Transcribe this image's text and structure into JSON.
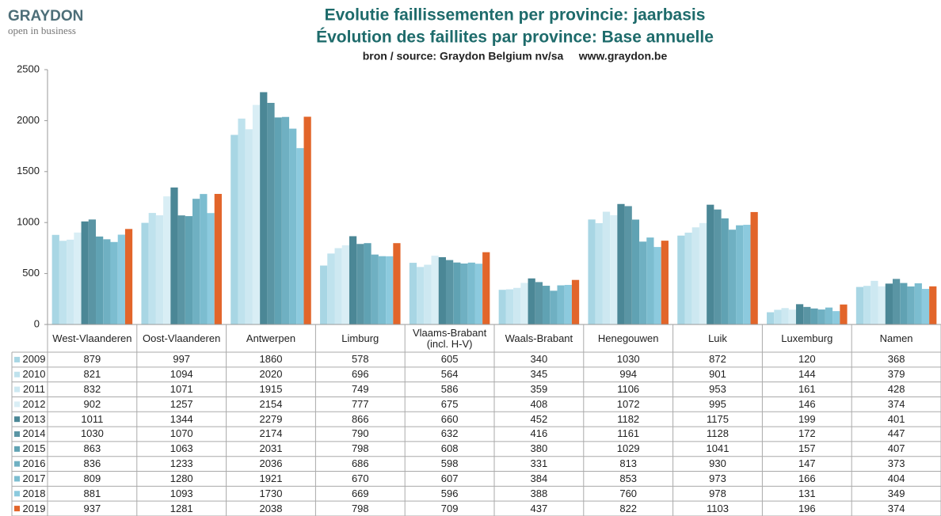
{
  "logo": {
    "name": "GRAYDON",
    "tagline": "open in business"
  },
  "chart_data": {
    "type": "bar",
    "title": "Evolutie faillissementen per provincie: jaarbasis",
    "title2": "Évolution des faillites par province: Base annuelle",
    "subtitle": "bron / source: Graydon Belgium nv/sa     www.graydon.be",
    "categories": [
      "West-Vlaanderen",
      "Oost-Vlaanderen",
      "Antwerpen",
      "Limburg",
      "Vlaams-Brabant (incl. H-V)",
      "Waals-Brabant",
      "Henegouwen",
      "Luik",
      "Luxemburg",
      "Namen"
    ],
    "series": [
      {
        "name": "2009",
        "color": "#a8d6e4",
        "values": [
          879,
          997,
          1860,
          578,
          605,
          340,
          1030,
          872,
          120,
          368
        ]
      },
      {
        "name": "2010",
        "color": "#bfe2ed",
        "values": [
          821,
          1094,
          2020,
          696,
          564,
          345,
          994,
          901,
          144,
          379
        ]
      },
      {
        "name": "2011",
        "color": "#cde8f1",
        "values": [
          832,
          1071,
          1915,
          749,
          586,
          359,
          1106,
          953,
          161,
          428
        ]
      },
      {
        "name": "2012",
        "color": "#d9eef5",
        "values": [
          902,
          1257,
          2154,
          777,
          675,
          408,
          1072,
          995,
          146,
          374
        ]
      },
      {
        "name": "2013",
        "color": "#4b8796",
        "values": [
          1011,
          1344,
          2279,
          866,
          660,
          452,
          1182,
          1175,
          199,
          401
        ]
      },
      {
        "name": "2014",
        "color": "#5a95a4",
        "values": [
          1030,
          1070,
          2174,
          790,
          632,
          416,
          1161,
          1128,
          172,
          447
        ]
      },
      {
        "name": "2015",
        "color": "#60a2b3",
        "values": [
          863,
          1063,
          2031,
          798,
          608,
          380,
          1029,
          1041,
          157,
          407
        ]
      },
      {
        "name": "2016",
        "color": "#6fb0c2",
        "values": [
          836,
          1233,
          2036,
          686,
          598,
          331,
          813,
          930,
          147,
          373
        ]
      },
      {
        "name": "2017",
        "color": "#7cbdd0",
        "values": [
          809,
          1280,
          1921,
          670,
          607,
          384,
          853,
          973,
          166,
          404
        ]
      },
      {
        "name": "2018",
        "color": "#8ccade",
        "values": [
          881,
          1093,
          1730,
          669,
          596,
          388,
          760,
          978,
          131,
          349
        ]
      },
      {
        "name": "2019",
        "color": "#e2652a",
        "values": [
          937,
          1281,
          2038,
          798,
          709,
          437,
          822,
          1103,
          196,
          374
        ]
      }
    ],
    "ylim": [
      0,
      2500
    ],
    "yticks": [
      0,
      500,
      1000,
      1500,
      2000,
      2500
    ],
    "grid": false
  }
}
